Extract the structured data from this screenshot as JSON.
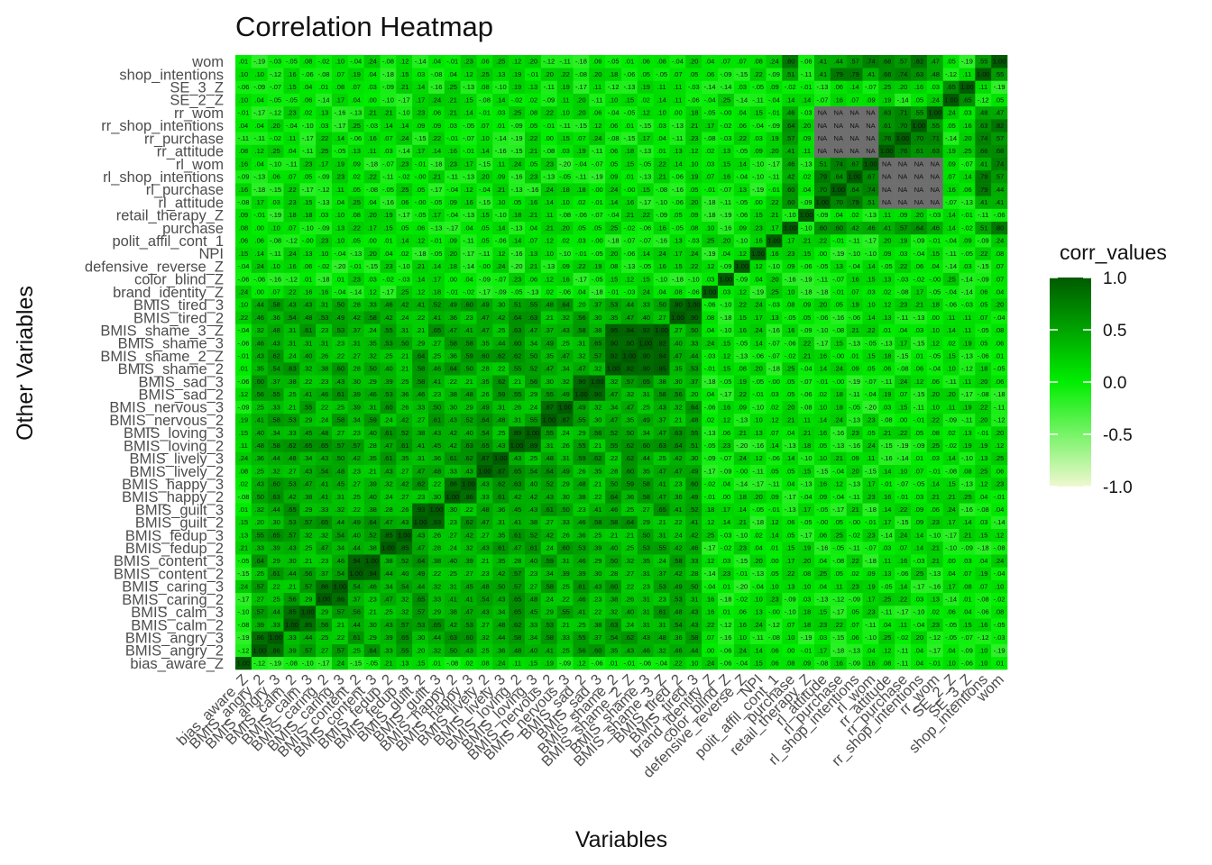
{
  "chart_data": {
    "type": "heatmap",
    "title": "Correlation Heatmap",
    "xlabel": "Variables",
    "ylabel": "Other Variables",
    "variables": [
      "bias_aware_Z",
      "BMIS_angry_2",
      "BMIS_angry_3",
      "BMIS_calm_2",
      "BMIS_calm_3",
      "BMIS_caring_2",
      "BMIS_caring_3",
      "BMIS_content_2",
      "BMIS_content_3",
      "BMIS_fedup_2",
      "BMIS_fedup_3",
      "BMIS_guilt_2",
      "BMIS_guilt_3",
      "BMIS_happy_2",
      "BMIS_happy_3",
      "BMIS_lively_2",
      "BMIS_lively_3",
      "BMIS_loving_2",
      "BMIS_loving_3",
      "BMIS_nervous_2",
      "BMIS_nervous_3",
      "BMIS_sad_2",
      "BMIS_sad_3",
      "BMIS_shame_2",
      "BMIS_shame_2_Z",
      "BMIS_shame_3",
      "BMIS_shame_3_Z",
      "BMIS_tired_2",
      "BMIS_tired_3",
      "brand_identity_Z",
      "color_blind_Z",
      "defensive_reverse_Z",
      "NPI",
      "polit_affil_cont_1",
      "purchase",
      "retail_therapy_Z",
      "rl_attitude",
      "rl_purchase",
      "rl_shop_intentions",
      "rl_wom",
      "rr_attitude",
      "rr_purchase",
      "rr_shop_intentions",
      "rr_wom",
      "SE_2_Z",
      "SE_3_Z",
      "shop_intentions",
      "wom"
    ],
    "legend": {
      "title": "corr_values",
      "breaks": [
        "1.0",
        "0.5",
        "0.0",
        "-0.5",
        "-1.0"
      ],
      "colors": {
        "low": "#f0f8d0",
        "mid": "#00ee00",
        "high": "#005a00",
        "na": "#6e6e6e"
      }
    },
    "value_range": [
      -1,
      1
    ],
    "cell_label_format": "2 decimals, leading 0 removed"
  }
}
